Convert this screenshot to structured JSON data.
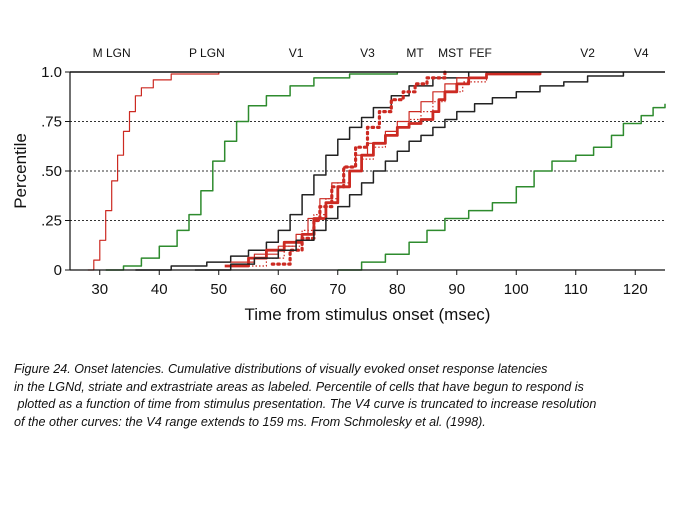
{
  "chart_data": {
    "type": "line",
    "xlabel": "Time from stimulus onset (msec)",
    "ylabel": "Percentile",
    "xlim": [
      25,
      125
    ],
    "ylim": [
      0,
      1
    ],
    "x_ticks": [
      30,
      40,
      50,
      60,
      70,
      80,
      90,
      100,
      110,
      120
    ],
    "y_ticks": [
      {
        "value": 0,
        "label": "0"
      },
      {
        "value": 0.25,
        "label": ".25"
      },
      {
        "value": 0.5,
        "label": ".50"
      },
      {
        "value": 0.75,
        "label": ".75"
      },
      {
        "value": 1.0,
        "label": "1.0"
      }
    ],
    "grid": "dotted horizontal lines at .25, .50, .75",
    "series": [
      {
        "name": "M LGN",
        "color": "#cc2a22",
        "style": "thin-solid",
        "label_at": [
          32,
          1.08
        ],
        "points": [
          [
            28,
            0
          ],
          [
            29,
            0.05
          ],
          [
            30,
            0.15
          ],
          [
            31,
            0.3
          ],
          [
            32,
            0.45
          ],
          [
            33,
            0.58
          ],
          [
            34,
            0.7
          ],
          [
            35,
            0.8
          ],
          [
            36,
            0.88
          ],
          [
            37,
            0.92
          ],
          [
            39,
            0.96
          ],
          [
            42,
            0.99
          ],
          [
            50,
            1.0
          ]
        ]
      },
      {
        "name": "P LGN",
        "color": "#2e8b2e",
        "style": "solid",
        "label_at": [
          48,
          1.08
        ],
        "points": [
          [
            31,
            0
          ],
          [
            34,
            0.02
          ],
          [
            37,
            0.06
          ],
          [
            40,
            0.12
          ],
          [
            43,
            0.2
          ],
          [
            45,
            0.28
          ],
          [
            47,
            0.4
          ],
          [
            49,
            0.55
          ],
          [
            51,
            0.65
          ],
          [
            53,
            0.75
          ],
          [
            55,
            0.83
          ],
          [
            58,
            0.88
          ],
          [
            62,
            0.93
          ],
          [
            66,
            0.97
          ],
          [
            72,
            0.99
          ],
          [
            80,
            1.0
          ]
        ]
      },
      {
        "name": "V1",
        "color": "#222222",
        "style": "solid",
        "label_at": [
          63,
          1.08
        ],
        "points": [
          [
            36,
            0
          ],
          [
            42,
            0.02
          ],
          [
            48,
            0.04
          ],
          [
            52,
            0.07
          ],
          [
            55,
            0.1
          ],
          [
            58,
            0.14
          ],
          [
            60,
            0.2
          ],
          [
            62,
            0.28
          ],
          [
            64,
            0.38
          ],
          [
            66,
            0.48
          ],
          [
            68,
            0.58
          ],
          [
            70,
            0.66
          ],
          [
            72,
            0.72
          ],
          [
            74,
            0.77
          ],
          [
            76,
            0.82
          ],
          [
            79,
            0.88
          ],
          [
            82,
            0.93
          ],
          [
            86,
            0.97
          ],
          [
            92,
            1.0
          ]
        ]
      },
      {
        "name": "V3",
        "color": "#cc2a22",
        "style": "dotted-thick",
        "label_at": [
          75,
          1.08
        ],
        "points": [
          [
            59,
            0.03
          ],
          [
            62,
            0.1
          ],
          [
            64,
            0.16
          ],
          [
            66,
            0.25
          ],
          [
            67,
            0.32
          ],
          [
            69,
            0.42
          ],
          [
            71,
            0.52
          ],
          [
            73,
            0.62
          ],
          [
            75,
            0.72
          ],
          [
            77,
            0.8
          ],
          [
            79,
            0.86
          ],
          [
            81,
            0.9
          ],
          [
            83,
            0.94
          ],
          [
            85,
            0.97
          ],
          [
            88,
            1.0
          ]
        ]
      },
      {
        "name": "MT",
        "color": "#cc2a22",
        "style": "thin-solid",
        "label_at": [
          83,
          1.08
        ],
        "points": [
          [
            52,
            0.04
          ],
          [
            56,
            0.08
          ],
          [
            60,
            0.12
          ],
          [
            63,
            0.18
          ],
          [
            65,
            0.26
          ],
          [
            67,
            0.36
          ],
          [
            69,
            0.44
          ],
          [
            71,
            0.52
          ],
          [
            73,
            0.58
          ],
          [
            75,
            0.64
          ],
          [
            78,
            0.7
          ],
          [
            80,
            0.75
          ],
          [
            82,
            0.8
          ],
          [
            84,
            0.85
          ],
          [
            86,
            0.9
          ],
          [
            88,
            0.94
          ],
          [
            90,
            0.97
          ],
          [
            95,
            1.0
          ]
        ]
      },
      {
        "name": "MST",
        "color": "#cc2a22",
        "style": "dotted-thin",
        "label_at": [
          89,
          1.08
        ],
        "points": [
          [
            55,
            0.02
          ],
          [
            58,
            0.06
          ],
          [
            61,
            0.12
          ],
          [
            64,
            0.2
          ],
          [
            66,
            0.28
          ],
          [
            68,
            0.36
          ],
          [
            70,
            0.44
          ],
          [
            72,
            0.5
          ],
          [
            74,
            0.56
          ],
          [
            76,
            0.62
          ],
          [
            78,
            0.68
          ],
          [
            80,
            0.72
          ],
          [
            82,
            0.76
          ],
          [
            84,
            0.8
          ],
          [
            86,
            0.85
          ],
          [
            88,
            0.9
          ],
          [
            91,
            0.95
          ],
          [
            95,
            1.0
          ]
        ]
      },
      {
        "name": "FEF",
        "color": "#cc2a22",
        "style": "thick-solid",
        "label_at": [
          94,
          1.08
        ],
        "points": [
          [
            51,
            0.02
          ],
          [
            55,
            0.06
          ],
          [
            58,
            0.1
          ],
          [
            61,
            0.14
          ],
          [
            64,
            0.18
          ],
          [
            66,
            0.26
          ],
          [
            68,
            0.34
          ],
          [
            70,
            0.42
          ],
          [
            72,
            0.5
          ],
          [
            74,
            0.58
          ],
          [
            76,
            0.64
          ],
          [
            78,
            0.68
          ],
          [
            80,
            0.72
          ],
          [
            82,
            0.74
          ],
          [
            84,
            0.76
          ],
          [
            86,
            0.8
          ],
          [
            87,
            0.86
          ],
          [
            88,
            0.9
          ],
          [
            90,
            0.94
          ],
          [
            92,
            0.97
          ],
          [
            95,
            0.99
          ],
          [
            104,
            1.0
          ]
        ]
      },
      {
        "name": "V2",
        "color": "#222222",
        "style": "solid",
        "label_at": [
          112,
          1.08
        ],
        "points": [
          [
            46,
            0.0
          ],
          [
            52,
            0.03
          ],
          [
            56,
            0.06
          ],
          [
            60,
            0.1
          ],
          [
            63,
            0.15
          ],
          [
            66,
            0.2
          ],
          [
            68,
            0.26
          ],
          [
            70,
            0.32
          ],
          [
            72,
            0.38
          ],
          [
            74,
            0.44
          ],
          [
            76,
            0.5
          ],
          [
            78,
            0.55
          ],
          [
            80,
            0.6
          ],
          [
            82,
            0.65
          ],
          [
            84,
            0.68
          ],
          [
            86,
            0.72
          ],
          [
            88,
            0.76
          ],
          [
            90,
            0.8
          ],
          [
            93,
            0.84
          ],
          [
            96,
            0.87
          ],
          [
            100,
            0.9
          ],
          [
            104,
            0.93
          ],
          [
            108,
            0.95
          ],
          [
            112,
            0.98
          ],
          [
            118,
            1.0
          ]
        ]
      },
      {
        "name": "V4",
        "color": "#2e8b2e",
        "style": "solid",
        "label_at": [
          121,
          1.08
        ],
        "points": [
          [
            70,
            0
          ],
          [
            74,
            0.04
          ],
          [
            78,
            0.08
          ],
          [
            82,
            0.14
          ],
          [
            85,
            0.2
          ],
          [
            88,
            0.26
          ],
          [
            92,
            0.3
          ],
          [
            96,
            0.34
          ],
          [
            100,
            0.42
          ],
          [
            103,
            0.5
          ],
          [
            106,
            0.55
          ],
          [
            110,
            0.58
          ],
          [
            113,
            0.62
          ],
          [
            116,
            0.68
          ],
          [
            118,
            0.74
          ],
          [
            121,
            0.78
          ],
          [
            123,
            0.82
          ],
          [
            125,
            0.84
          ]
        ]
      }
    ]
  },
  "caption": {
    "lines": [
      "Figure 24. Onset latencies. Cumulative distributions of visually evoked onset response latencies",
      "in the LGNd, striate and extrastriate areas as labeled. Percentile of cells that have begun to respond is",
      " plotted as a function of time from stimulus presentation. The V4 curve is truncated to increase resolution",
      "of the other curves: the V4 range extends to 159 ms. From Schmolesky et al. (1998)."
    ]
  }
}
